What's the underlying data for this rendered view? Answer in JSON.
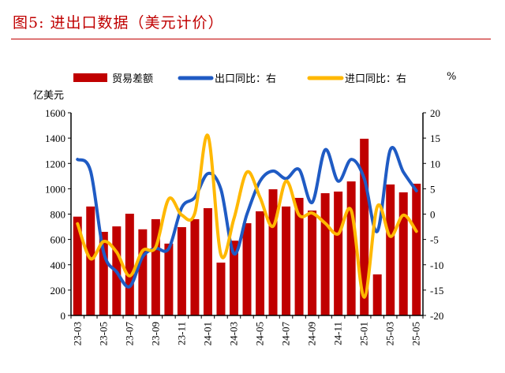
{
  "title": "图5:  进出口数据（美元计价）",
  "chart_data": {
    "type": "bar+line",
    "left_axis_unit": "亿美元",
    "right_axis_unit": "%",
    "left_ylim": [
      0,
      1600
    ],
    "left_ticks": [
      0,
      200,
      400,
      600,
      800,
      1000,
      1200,
      1400,
      1600
    ],
    "right_ylim": [
      -20,
      20
    ],
    "right_ticks": [
      -20,
      -15,
      -10,
      -5,
      0,
      5,
      10,
      15,
      20
    ],
    "grid": false,
    "legend_position": "top",
    "categories": [
      "23-03",
      "23-04",
      "23-05",
      "23-06",
      "23-07",
      "23-08",
      "23-09",
      "23-10",
      "23-11",
      "23-12",
      "24-01",
      "24-02",
      "24-03",
      "24-04",
      "24-05",
      "24-06",
      "24-07",
      "24-08",
      "24-09",
      "24-10",
      "24-11",
      "24-12",
      "25-01",
      "25-02",
      "25-03",
      "25-04",
      "25-05"
    ],
    "x_tick_labels": [
      "23-03",
      "23-05",
      "23-07",
      "23-09",
      "23-11",
      "24-01",
      "24-03",
      "24-05",
      "24-07",
      "24-09",
      "24-11",
      "25-01",
      "25-03",
      "25-05"
    ],
    "series": [
      {
        "name": "贸易差额",
        "type": "bar",
        "axis": "left",
        "color": "#c00000",
        "values": [
          780,
          860,
          660,
          703,
          803,
          680,
          760,
          567,
          697,
          760,
          847,
          417,
          590,
          728,
          822,
          996,
          860,
          928,
          828,
          965,
          978,
          1058,
          1395,
          324,
          1034,
          972,
          1040
        ]
      },
      {
        "name": "出口同比：右",
        "type": "line",
        "axis": "right",
        "color": "#1f5bc4",
        "values": [
          10.8,
          8.5,
          -7.5,
          -11.4,
          -14.3,
          -8.4,
          -6.8,
          -6.8,
          1.3,
          3.3,
          8.0,
          4.9,
          -7.8,
          0.0,
          6.5,
          8.5,
          7.0,
          8.8,
          2.3,
          12.7,
          6.5,
          10.8,
          7.0,
          -3.4,
          12.7,
          8.3,
          4.6
        ]
      },
      {
        "name": "进口同比：右",
        "type": "line",
        "axis": "right",
        "color": "#ffb800",
        "values": [
          -1.9,
          -8.8,
          -5.4,
          -7.5,
          -12.2,
          -7.2,
          -6.5,
          3.0,
          -0.2,
          0.2,
          15.5,
          -8.0,
          -0.9,
          8.3,
          3.3,
          -2.4,
          6.5,
          -0.2,
          0.2,
          -1.8,
          -3.9,
          0.7,
          -16.4,
          1.5,
          -4.4,
          -0.2,
          -3.4
        ]
      }
    ]
  }
}
